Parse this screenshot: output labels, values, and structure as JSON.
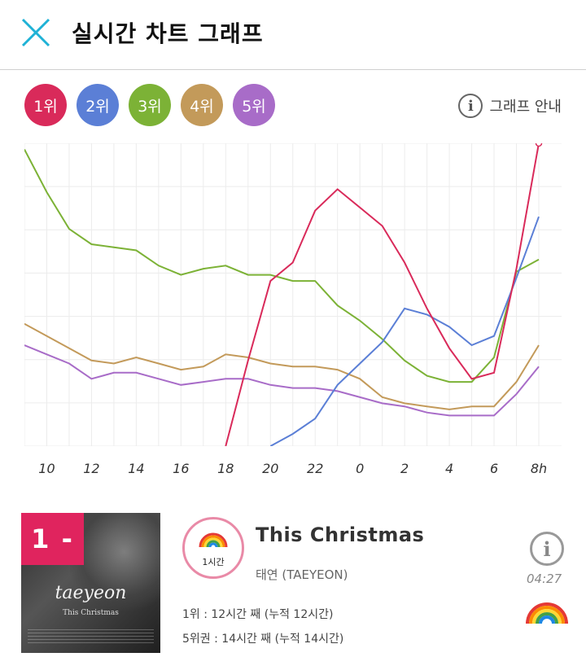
{
  "header": {
    "title": "실시간 차트 그래프",
    "close_icon": "close-icon"
  },
  "ranks": [
    {
      "label": "1위",
      "color": "#d92a5a"
    },
    {
      "label": "2위",
      "color": "#5b7fd6"
    },
    {
      "label": "3위",
      "color": "#7cb236"
    },
    {
      "label": "4위",
      "color": "#c39a5a"
    },
    {
      "label": "5위",
      "color": "#a86cc8"
    }
  ],
  "guide": {
    "label": "그래프 안내",
    "icon": "info-icon"
  },
  "chart_data": {
    "type": "line",
    "x": [
      "9",
      "10",
      "11",
      "12",
      "13",
      "14",
      "15",
      "16",
      "17",
      "18",
      "19",
      "20",
      "21",
      "22",
      "23",
      "0",
      "1",
      "2",
      "3",
      "4",
      "5",
      "6",
      "7",
      "8"
    ],
    "xtick_labels": [
      "10",
      "12",
      "14",
      "16",
      "18",
      "20",
      "22",
      "0",
      "2",
      "4",
      "6",
      "8h"
    ],
    "y_direction": "rank value, 1 at top, 100 at bottom",
    "ylim": [
      1,
      100
    ],
    "grid": true,
    "series": [
      {
        "color": "#d92a5a",
        "values": [
          null,
          null,
          null,
          null,
          null,
          null,
          null,
          null,
          null,
          100,
          72,
          46,
          40,
          23,
          16,
          22,
          28,
          40,
          55,
          68,
          78,
          76,
          42,
          1
        ]
      },
      {
        "color": "#5b7fd6",
        "values": [
          null,
          null,
          null,
          null,
          null,
          null,
          null,
          null,
          null,
          null,
          null,
          100,
          96,
          91,
          80,
          73,
          66,
          55,
          57,
          61,
          67,
          64,
          45,
          25
        ]
      },
      {
        "color": "#7cb236",
        "values": [
          3,
          17,
          29,
          34,
          35,
          36,
          41,
          44,
          42,
          41,
          44,
          44,
          46,
          46,
          54,
          59,
          65,
          72,
          77,
          79,
          79,
          71,
          43,
          39
        ]
      },
      {
        "color": "#c39a5a",
        "values": [
          60,
          64,
          68,
          72,
          73,
          71,
          73,
          75,
          74,
          70,
          71,
          73,
          74,
          74,
          75,
          78,
          84,
          86,
          87,
          88,
          87,
          87,
          79,
          67
        ]
      },
      {
        "color": "#a86cc8",
        "values": [
          67,
          70,
          73,
          78,
          76,
          76,
          78,
          80,
          79,
          78,
          78,
          80,
          81,
          81,
          82,
          84,
          86,
          87,
          89,
          90,
          90,
          90,
          83,
          74
        ]
      }
    ]
  },
  "song": {
    "rank_badge": "1 -",
    "album_artist": "taeyeon",
    "album_sub": "This Christmas",
    "hour_badge_label": "1시간",
    "title": "This Christmas",
    "artist": "태연 (TAEYEON)",
    "stat1": "1위 : 12시간 째 (누적 12시간)",
    "stat2": "5위권 : 14시간 째 (누적 14시간)",
    "duration": "04:27"
  }
}
